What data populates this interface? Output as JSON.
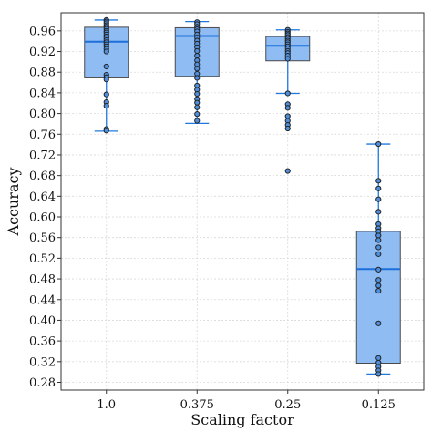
{
  "chart_data": {
    "type": "box",
    "title": "",
    "xlabel": "Scaling factor",
    "ylabel": "Accuracy",
    "categories": [
      "1.0",
      "0.375",
      "0.25",
      "0.125"
    ],
    "ylim": [
      0.265,
      0.995
    ],
    "yticks": [
      0.28,
      0.32,
      0.36,
      0.4,
      0.44,
      0.48,
      0.52,
      0.56,
      0.6,
      0.64,
      0.68,
      0.72,
      0.76,
      0.8,
      0.84,
      0.88,
      0.92,
      0.96
    ],
    "ytick_labels": [
      "0.28",
      "0.32",
      "0.36",
      "0.40",
      "0.44",
      "0.48",
      "0.52",
      "0.56",
      "0.60",
      "0.64",
      "0.68",
      "0.72",
      "0.76",
      "0.80",
      "0.84",
      "0.88",
      "0.92",
      "0.96"
    ],
    "grid": true,
    "colors": {
      "box_fill": "#8fbcf2",
      "box_stroke": "#4a4a4a",
      "median": "#1e6fd9",
      "whisker": "#1e78e0",
      "point_fill": "#4f8fdc",
      "point_stroke": "#222222",
      "grid": "#d9d9d9"
    },
    "boxes": [
      {
        "category": "1.0",
        "q1": 0.869,
        "median": 0.939,
        "q3": 0.967,
        "whisker_low": 0.766,
        "whisker_high": 0.981,
        "points": [
          0.981,
          0.978,
          0.975,
          0.971,
          0.968,
          0.964,
          0.96,
          0.957,
          0.953,
          0.949,
          0.946,
          0.942,
          0.938,
          0.934,
          0.93,
          0.925,
          0.92,
          0.891,
          0.875,
          0.87,
          0.866,
          0.837,
          0.822,
          0.815,
          0.77,
          0.767
        ]
      },
      {
        "category": "0.375",
        "q1": 0.872,
        "median": 0.95,
        "q3": 0.966,
        "whisker_low": 0.781,
        "whisker_high": 0.978,
        "points": [
          0.977,
          0.973,
          0.968,
          0.963,
          0.959,
          0.953,
          0.947,
          0.941,
          0.935,
          0.928,
          0.921,
          0.912,
          0.903,
          0.895,
          0.887,
          0.877,
          0.869,
          0.854,
          0.846,
          0.838,
          0.828,
          0.821,
          0.812,
          0.799,
          0.786
        ]
      },
      {
        "category": "0.25",
        "q1": 0.902,
        "median": 0.931,
        "q3": 0.949,
        "whisker_low": 0.839,
        "whisker_high": 0.962,
        "points": [
          0.962,
          0.958,
          0.955,
          0.952,
          0.948,
          0.945,
          0.941,
          0.938,
          0.934,
          0.93,
          0.926,
          0.921,
          0.917,
          0.912,
          0.906,
          0.839,
          0.818,
          0.811,
          0.795,
          0.786,
          0.778,
          0.771,
          0.689
        ]
      },
      {
        "category": "0.125",
        "q1": 0.317,
        "median": 0.499,
        "q3": 0.572,
        "whisker_low": 0.296,
        "whisker_high": 0.741,
        "points": [
          0.741,
          0.67,
          0.655,
          0.634,
          0.61,
          0.586,
          0.578,
          0.572,
          0.564,
          0.555,
          0.541,
          0.528,
          0.498,
          0.478,
          0.467,
          0.457,
          0.394,
          0.327,
          0.318,
          0.31,
          0.303,
          0.296
        ]
      }
    ]
  }
}
